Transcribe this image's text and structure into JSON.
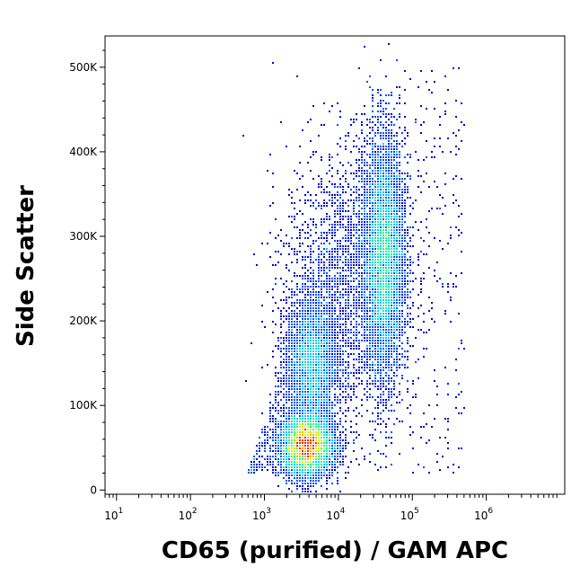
{
  "chart_data": {
    "type": "scatter",
    "title": "",
    "xlabel": "CD65 (purified) / GAM APC",
    "ylabel": "Side Scatter",
    "x_scale": "log",
    "xlim": [
      7,
      11500000
    ],
    "ylim": [
      -5000,
      537000
    ],
    "x_ticks": [
      {
        "base": "10",
        "exp": "1",
        "value": 10
      },
      {
        "base": "10",
        "exp": "2",
        "value": 100
      },
      {
        "base": "10",
        "exp": "3",
        "value": 1000
      },
      {
        "base": "10",
        "exp": "4",
        "value": 10000
      },
      {
        "base": "10",
        "exp": "5",
        "value": 100000
      },
      {
        "base": "10",
        "exp": "6",
        "value": 1000000
      }
    ],
    "y_ticks": [
      {
        "label": "0",
        "value": 0
      },
      {
        "label": "100K",
        "value": 100000
      },
      {
        "label": "200K",
        "value": 200000
      },
      {
        "label": "300K",
        "value": 300000
      },
      {
        "label": "400K",
        "value": 400000
      },
      {
        "label": "500K",
        "value": 500000
      }
    ],
    "grid": false,
    "legend": "none",
    "colormap": [
      "#0000c8",
      "#0050ff",
      "#00c8ff",
      "#00ff90",
      "#c8ff00",
      "#ffb000",
      "#ff2000"
    ],
    "populations": [
      {
        "center_x": 3800,
        "center_y": 52000,
        "spread_log_x": 0.18,
        "spread_y": 18000,
        "density": "high"
      },
      {
        "center_x": 4300,
        "center_y": 150000,
        "spread_log_x": 0.17,
        "spread_y": 40000,
        "density": "medium"
      },
      {
        "center_x": 42000,
        "center_y": 275000,
        "spread_log_x": 0.14,
        "spread_y": 70000,
        "density": "high"
      },
      {
        "center_x": 12000,
        "center_y": 250000,
        "spread_log_x": 0.4,
        "spread_y": 80000,
        "density": "low"
      }
    ]
  }
}
